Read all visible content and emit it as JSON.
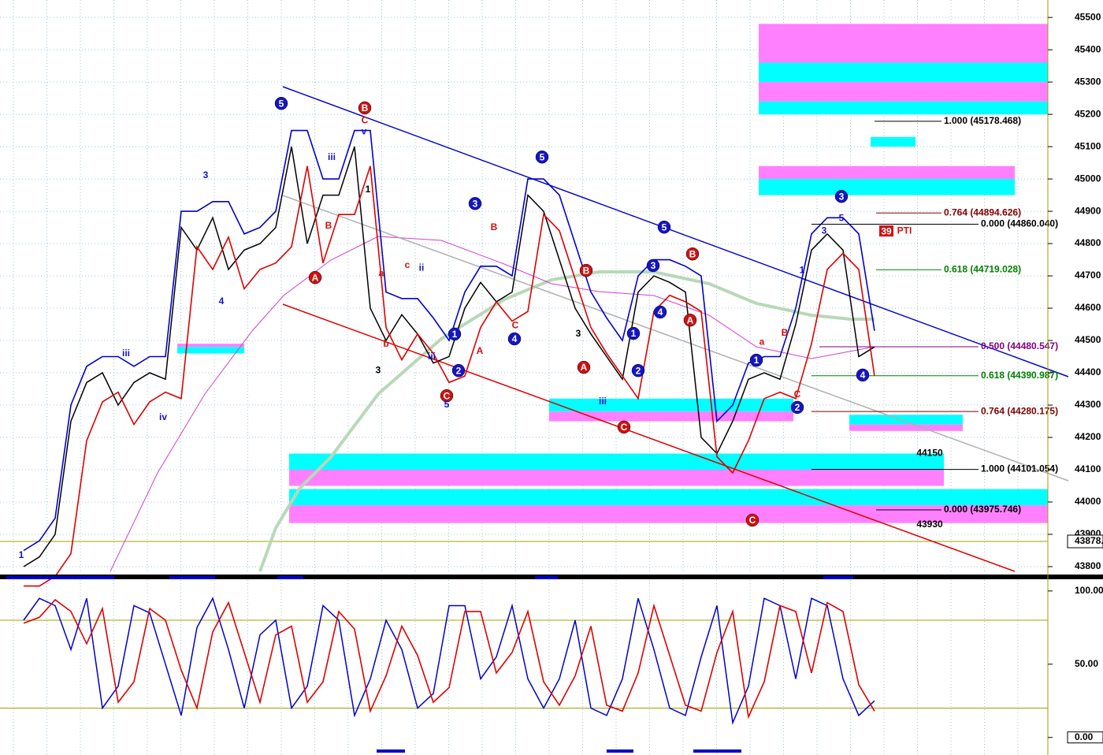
{
  "chart_data": [
    {
      "type": "line",
      "xlim": [
        -1.5,
        65
      ],
      "ylim": [
        43778,
        45554
      ],
      "yticks": [
        43800,
        43900,
        44000,
        44100,
        44200,
        44300,
        44400,
        44500,
        44600,
        44700,
        44800,
        44900,
        45000,
        45100,
        45200,
        45300,
        45400,
        45500
      ],
      "grid": true,
      "series": [
        {
          "color": "#000000",
          "values": [
            43800,
            43830,
            43900,
            44250,
            44370,
            44400,
            44300,
            44370,
            44400,
            44380,
            44850,
            44780,
            44880,
            44720,
            44780,
            44800,
            44850,
            45100,
            44800,
            44950,
            44950,
            45100,
            44600,
            44500,
            44580,
            44520,
            44430,
            44450,
            44600,
            44680,
            44620,
            44650,
            44950,
            44900,
            44750,
            44600,
            44520,
            44450,
            44380,
            44650,
            44700,
            44680,
            44650,
            44200,
            44150,
            44250,
            44380,
            44400,
            44380,
            44550,
            44780,
            44830,
            44780,
            44450,
            44480
          ]
        },
        {
          "color": "#0000cc",
          "values": [
            43850,
            43880,
            43950,
            44300,
            44420,
            44450,
            44450,
            44420,
            44450,
            44450,
            44900,
            44900,
            44930,
            44930,
            44830,
            44850,
            44900,
            45150,
            45150,
            45000,
            45000,
            45150,
            45150,
            44650,
            44630,
            44630,
            44570,
            44500,
            44650,
            44730,
            44730,
            44700,
            45000,
            45000,
            44950,
            44800,
            44650,
            44570,
            44500,
            44700,
            44750,
            44750,
            44730,
            44700,
            44250,
            44300,
            44430,
            44450,
            44450,
            44600,
            44830,
            44880,
            44880,
            44830,
            44530
          ]
        },
        {
          "color": "#dd0000",
          "values": [
            43740,
            43740,
            43770,
            43840,
            44190,
            44310,
            44340,
            44240,
            44310,
            44340,
            44320,
            44790,
            44720,
            44820,
            44660,
            44720,
            44740,
            44790,
            45040,
            44740,
            44890,
            44890,
            45040,
            44540,
            44440,
            44520,
            44460,
            44370,
            44390,
            44540,
            44620,
            44560,
            44590,
            44890,
            44840,
            44690,
            44540,
            44460,
            44390,
            44320,
            44590,
            44640,
            44620,
            44590,
            44140,
            44090,
            44190,
            44320,
            44340,
            44320,
            44490,
            44720,
            44770,
            44720,
            44390
          ]
        }
      ],
      "zones": [
        {
          "x": [
            46.65,
            65
          ],
          "y": [
            45360,
            45480
          ],
          "color": "#ff80ff"
        },
        {
          "x": [
            46.65,
            65
          ],
          "y": [
            45300,
            45360
          ],
          "color": "#00ffff"
        },
        {
          "x": [
            46.65,
            65
          ],
          "y": [
            45240,
            45300
          ],
          "color": "#ff80ff"
        },
        {
          "x": [
            46.65,
            65
          ],
          "y": [
            45200,
            45240
          ],
          "color": "#00ffff"
        },
        {
          "x": [
            53.75,
            56.6
          ],
          "y": [
            45100,
            45130
          ],
          "color": "#00ffff"
        },
        {
          "x": [
            46.65,
            62.9
          ],
          "y": [
            45000,
            45040
          ],
          "color": "#ff80ff"
        },
        {
          "x": [
            46.65,
            62.9
          ],
          "y": [
            44950,
            45000
          ],
          "color": "#00ffff"
        },
        {
          "x": [
            9.75,
            14
          ],
          "y": [
            44480,
            44490
          ],
          "color": "#ff80ff"
        },
        {
          "x": [
            9.75,
            14
          ],
          "y": [
            44460,
            44480
          ],
          "color": "#00ffff"
        },
        {
          "x": [
            33.35,
            48.85
          ],
          "y": [
            44280,
            44320
          ],
          "color": "#00ffff"
        },
        {
          "x": [
            33.35,
            48.85
          ],
          "y": [
            44250,
            44280
          ],
          "color": "#ff80ff"
        },
        {
          "x": [
            52.4,
            59.6
          ],
          "y": [
            44240,
            44270
          ],
          "color": "#00ffff"
        },
        {
          "x": [
            52.4,
            59.6
          ],
          "y": [
            44220,
            44240
          ],
          "color": "#ff80ff"
        },
        {
          "x": [
            16.85,
            58.4
          ],
          "y": [
            44100,
            44150
          ],
          "color": "#00ffff"
        },
        {
          "x": [
            16.85,
            58.4
          ],
          "y": [
            44050,
            44100
          ],
          "color": "#ff80ff"
        },
        {
          "x": [
            16.85,
            65
          ],
          "y": [
            43990,
            44040
          ],
          "color": "#00ffff"
        },
        {
          "x": [
            16.85,
            65
          ],
          "y": [
            43935,
            43990
          ],
          "color": "#ff80ff"
        }
      ],
      "fib_levels": [
        {
          "value": 45178.468,
          "label": "1.000 (45178.468)",
          "color": "#000000"
        },
        {
          "value": 44894.626,
          "label": "0.764 (44894.626)",
          "color": "#800000"
        },
        {
          "value": 44860.04,
          "label": "0.000 (44860.040)",
          "color": "#000000"
        },
        {
          "value": 44719.028,
          "label": "0.618 (44719.028)",
          "color": "#008000"
        },
        {
          "value": 44480.547,
          "label": "0.500 (44480.547)",
          "color": "#800080"
        },
        {
          "value": 44390.987,
          "label": "0.618 (44390.987)",
          "color": "#008000"
        },
        {
          "value": 44280.175,
          "label": "0.764 (44280.175)",
          "color": "#800000"
        },
        {
          "value": 44101.054,
          "label": "1.000 (44101.054)",
          "color": "#000000"
        },
        {
          "value": 43975.746,
          "label": "0.000 (43975.746)",
          "color": "#000000"
        }
      ],
      "price_labels": [
        44150,
        43930
      ],
      "last_price": {
        "value": 43878,
        "label": "43878."
      },
      "annotations": [
        {
          "text": "5",
          "x": 16.35,
          "y": 45234,
          "style": "blue-circle"
        },
        {
          "text": "B",
          "x": 21.65,
          "y": 45220,
          "style": "red-circle"
        },
        {
          "text": "5",
          "x": 32.9,
          "y": 45068,
          "style": "blue-circle"
        },
        {
          "text": "5",
          "x": 40.65,
          "y": 44851,
          "style": "blue-circle"
        },
        {
          "text": "B",
          "x": 42.45,
          "y": 44768,
          "style": "red-circle"
        },
        {
          "text": "3",
          "x": 28.65,
          "y": 44924,
          "style": "blue-circle"
        },
        {
          "text": "1",
          "x": 27.35,
          "y": 44520,
          "style": "blue-circle"
        },
        {
          "text": "2",
          "x": 27.6,
          "y": 44407,
          "style": "blue-circle"
        },
        {
          "text": "C",
          "x": 26.85,
          "y": 44329,
          "style": "red-circle"
        },
        {
          "text": "4",
          "x": 31.15,
          "y": 44505,
          "style": "blue-circle"
        },
        {
          "text": "B",
          "x": 35.7,
          "y": 44717,
          "style": "red-circle"
        },
        {
          "text": "A",
          "x": 18.5,
          "y": 44695,
          "style": "red-circle"
        },
        {
          "text": "A",
          "x": 35.55,
          "y": 44417,
          "style": "red-circle"
        },
        {
          "text": "1",
          "x": 38.7,
          "y": 44522,
          "style": "blue-circle"
        },
        {
          "text": "3",
          "x": 39.95,
          "y": 44732,
          "style": "blue-circle"
        },
        {
          "text": "4",
          "x": 40.4,
          "y": 44588,
          "style": "blue-circle"
        },
        {
          "text": "2",
          "x": 39.0,
          "y": 44407,
          "style": "blue-circle"
        },
        {
          "text": "C",
          "x": 38.1,
          "y": 44232,
          "style": "red-circle"
        },
        {
          "text": "A",
          "x": 42.3,
          "y": 44563,
          "style": "red-circle"
        },
        {
          "text": "C",
          "x": 46.25,
          "y": 43944,
          "style": "red-circle"
        },
        {
          "text": "1",
          "x": 46.5,
          "y": 44439,
          "style": "blue-circle"
        },
        {
          "text": "2",
          "x": 49.1,
          "y": 44293,
          "style": "blue-circle"
        },
        {
          "text": "3",
          "x": 51.9,
          "y": 44946,
          "style": "blue-circle"
        },
        {
          "text": "4",
          "x": 53.25,
          "y": 44393,
          "style": "blue-circle"
        },
        {
          "text": "1",
          "x": -0.15,
          "y": 43834,
          "style": "blue"
        },
        {
          "text": "iii",
          "x": 6.5,
          "y": 44459,
          "style": "blue"
        },
        {
          "text": "iv",
          "x": 8.85,
          "y": 44261,
          "style": "blue"
        },
        {
          "text": "3",
          "x": 11.55,
          "y": 45010,
          "style": "blue"
        },
        {
          "text": "4",
          "x": 12.55,
          "y": 44620,
          "style": "blue"
        },
        {
          "text": "iii",
          "x": 19.55,
          "y": 45066,
          "style": "blue"
        },
        {
          "text": "v",
          "x": 21.6,
          "y": 45146,
          "style": "blue"
        },
        {
          "text": "ii",
          "x": 25.25,
          "y": 44724,
          "style": "blue"
        },
        {
          "text": "iii",
          "x": 25.9,
          "y": 44449,
          "style": "blue"
        },
        {
          "text": "5",
          "x": 26.85,
          "y": 44300,
          "style": "blue"
        },
        {
          "text": "iii",
          "x": 36.75,
          "y": 44310,
          "style": "blue"
        },
        {
          "text": "5",
          "x": 51.9,
          "y": 44878,
          "style": "blue"
        },
        {
          "text": "3",
          "x": 50.8,
          "y": 44839,
          "style": "blue"
        },
        {
          "text": "1",
          "x": 49.4,
          "y": 44717,
          "style": "blue"
        },
        {
          "text": "B",
          "x": 19.35,
          "y": 44854,
          "style": "red"
        },
        {
          "text": "C",
          "x": 21.65,
          "y": 45180,
          "style": "red"
        },
        {
          "text": "a",
          "x": 22.7,
          "y": 44707,
          "style": "red"
        },
        {
          "text": "b",
          "x": 23.0,
          "y": 44488,
          "style": "red"
        },
        {
          "text": "c",
          "x": 24.35,
          "y": 44732,
          "style": "red"
        },
        {
          "text": "A",
          "x": 28.95,
          "y": 44466,
          "style": "red"
        },
        {
          "text": "C",
          "x": 31.2,
          "y": 44546,
          "style": "red"
        },
        {
          "text": "B",
          "x": 29.85,
          "y": 44849,
          "style": "red"
        },
        {
          "text": "a",
          "x": 46.85,
          "y": 44495,
          "style": "red"
        },
        {
          "text": "B",
          "x": 48.3,
          "y": 44522,
          "style": "red"
        },
        {
          "text": "C",
          "x": 49.1,
          "y": 44332,
          "style": "red"
        },
        {
          "text": "39",
          "x": 54.75,
          "y": 44839,
          "style": "red-box"
        },
        {
          "text": "PTI",
          "x": 55.9,
          "y": 44839,
          "style": "red"
        },
        {
          "text": "1",
          "x": 21.85,
          "y": 44966,
          "style": "black"
        },
        {
          "text": "3",
          "x": 22.5,
          "y": 44407,
          "style": "black"
        },
        {
          "text": "3",
          "x": 35.2,
          "y": 44520,
          "style": "black"
        }
      ]
    },
    {
      "type": "line",
      "xlim": [
        -1.5,
        65
      ],
      "ylim": [
        -12,
        108
      ],
      "yticks": [
        {
          "value": 100,
          "label": "100.00"
        },
        {
          "value": 50,
          "label": "50.00"
        },
        {
          "value": 0,
          "label": "0.00"
        }
      ],
      "bands": [
        20,
        80
      ],
      "series": [
        {
          "color": "#0000cc",
          "values": [
            80,
            95,
            90,
            60,
            95,
            20,
            35,
            90,
            85,
            50,
            15,
            75,
            95,
            60,
            20,
            70,
            80,
            20,
            35,
            90,
            80,
            15,
            40,
            80,
            60,
            20,
            30,
            90,
            90,
            40,
            55,
            90,
            40,
            20,
            40,
            80,
            20,
            15,
            40,
            95,
            60,
            20,
            15,
            55,
            90,
            10,
            35,
            95,
            90,
            40,
            95,
            90,
            40,
            15,
            25
          ]
        },
        {
          "color": "#dd0000",
          "values": [
            78,
            82,
            94,
            86,
            64,
            88,
            24,
            38,
            88,
            80,
            46,
            20,
            72,
            92,
            58,
            24,
            70,
            76,
            24,
            38,
            86,
            74,
            18,
            42,
            76,
            56,
            24,
            34,
            86,
            86,
            44,
            58,
            86,
            38,
            22,
            42,
            76,
            22,
            18,
            44,
            90,
            56,
            22,
            18,
            58,
            86,
            14,
            38,
            90,
            86,
            44,
            92,
            86,
            36,
            18
          ]
        }
      ]
    }
  ]
}
